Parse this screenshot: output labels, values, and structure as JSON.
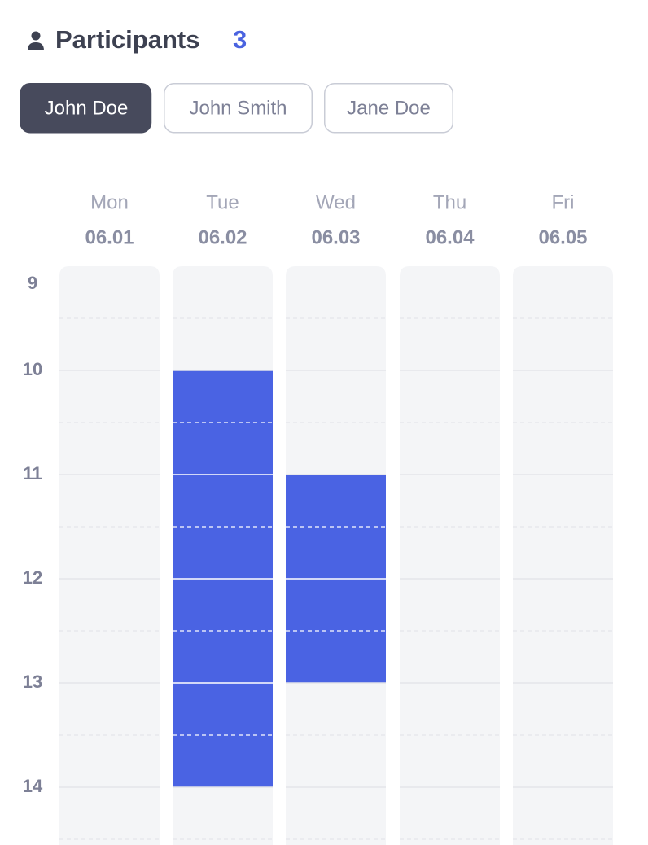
{
  "header": {
    "title": "Participants",
    "count": 3
  },
  "participants": [
    {
      "name": "John Doe",
      "selected": true
    },
    {
      "name": "John Smith",
      "selected": false
    },
    {
      "name": "Jane Doe",
      "selected": false
    }
  ],
  "hours": [
    9,
    10,
    11,
    12,
    13,
    14
  ],
  "days": [
    {
      "name": "Mon",
      "date": "06.01"
    },
    {
      "name": "Tue",
      "date": "06.02",
      "blocks": [
        {
          "start": 10,
          "end": 14
        }
      ]
    },
    {
      "name": "Wed",
      "date": "06.03",
      "blocks": [
        {
          "start": 11,
          "end": 13
        }
      ]
    },
    {
      "name": "Thu",
      "date": "06.04"
    },
    {
      "name": "Fri",
      "date": "06.05"
    }
  ]
}
